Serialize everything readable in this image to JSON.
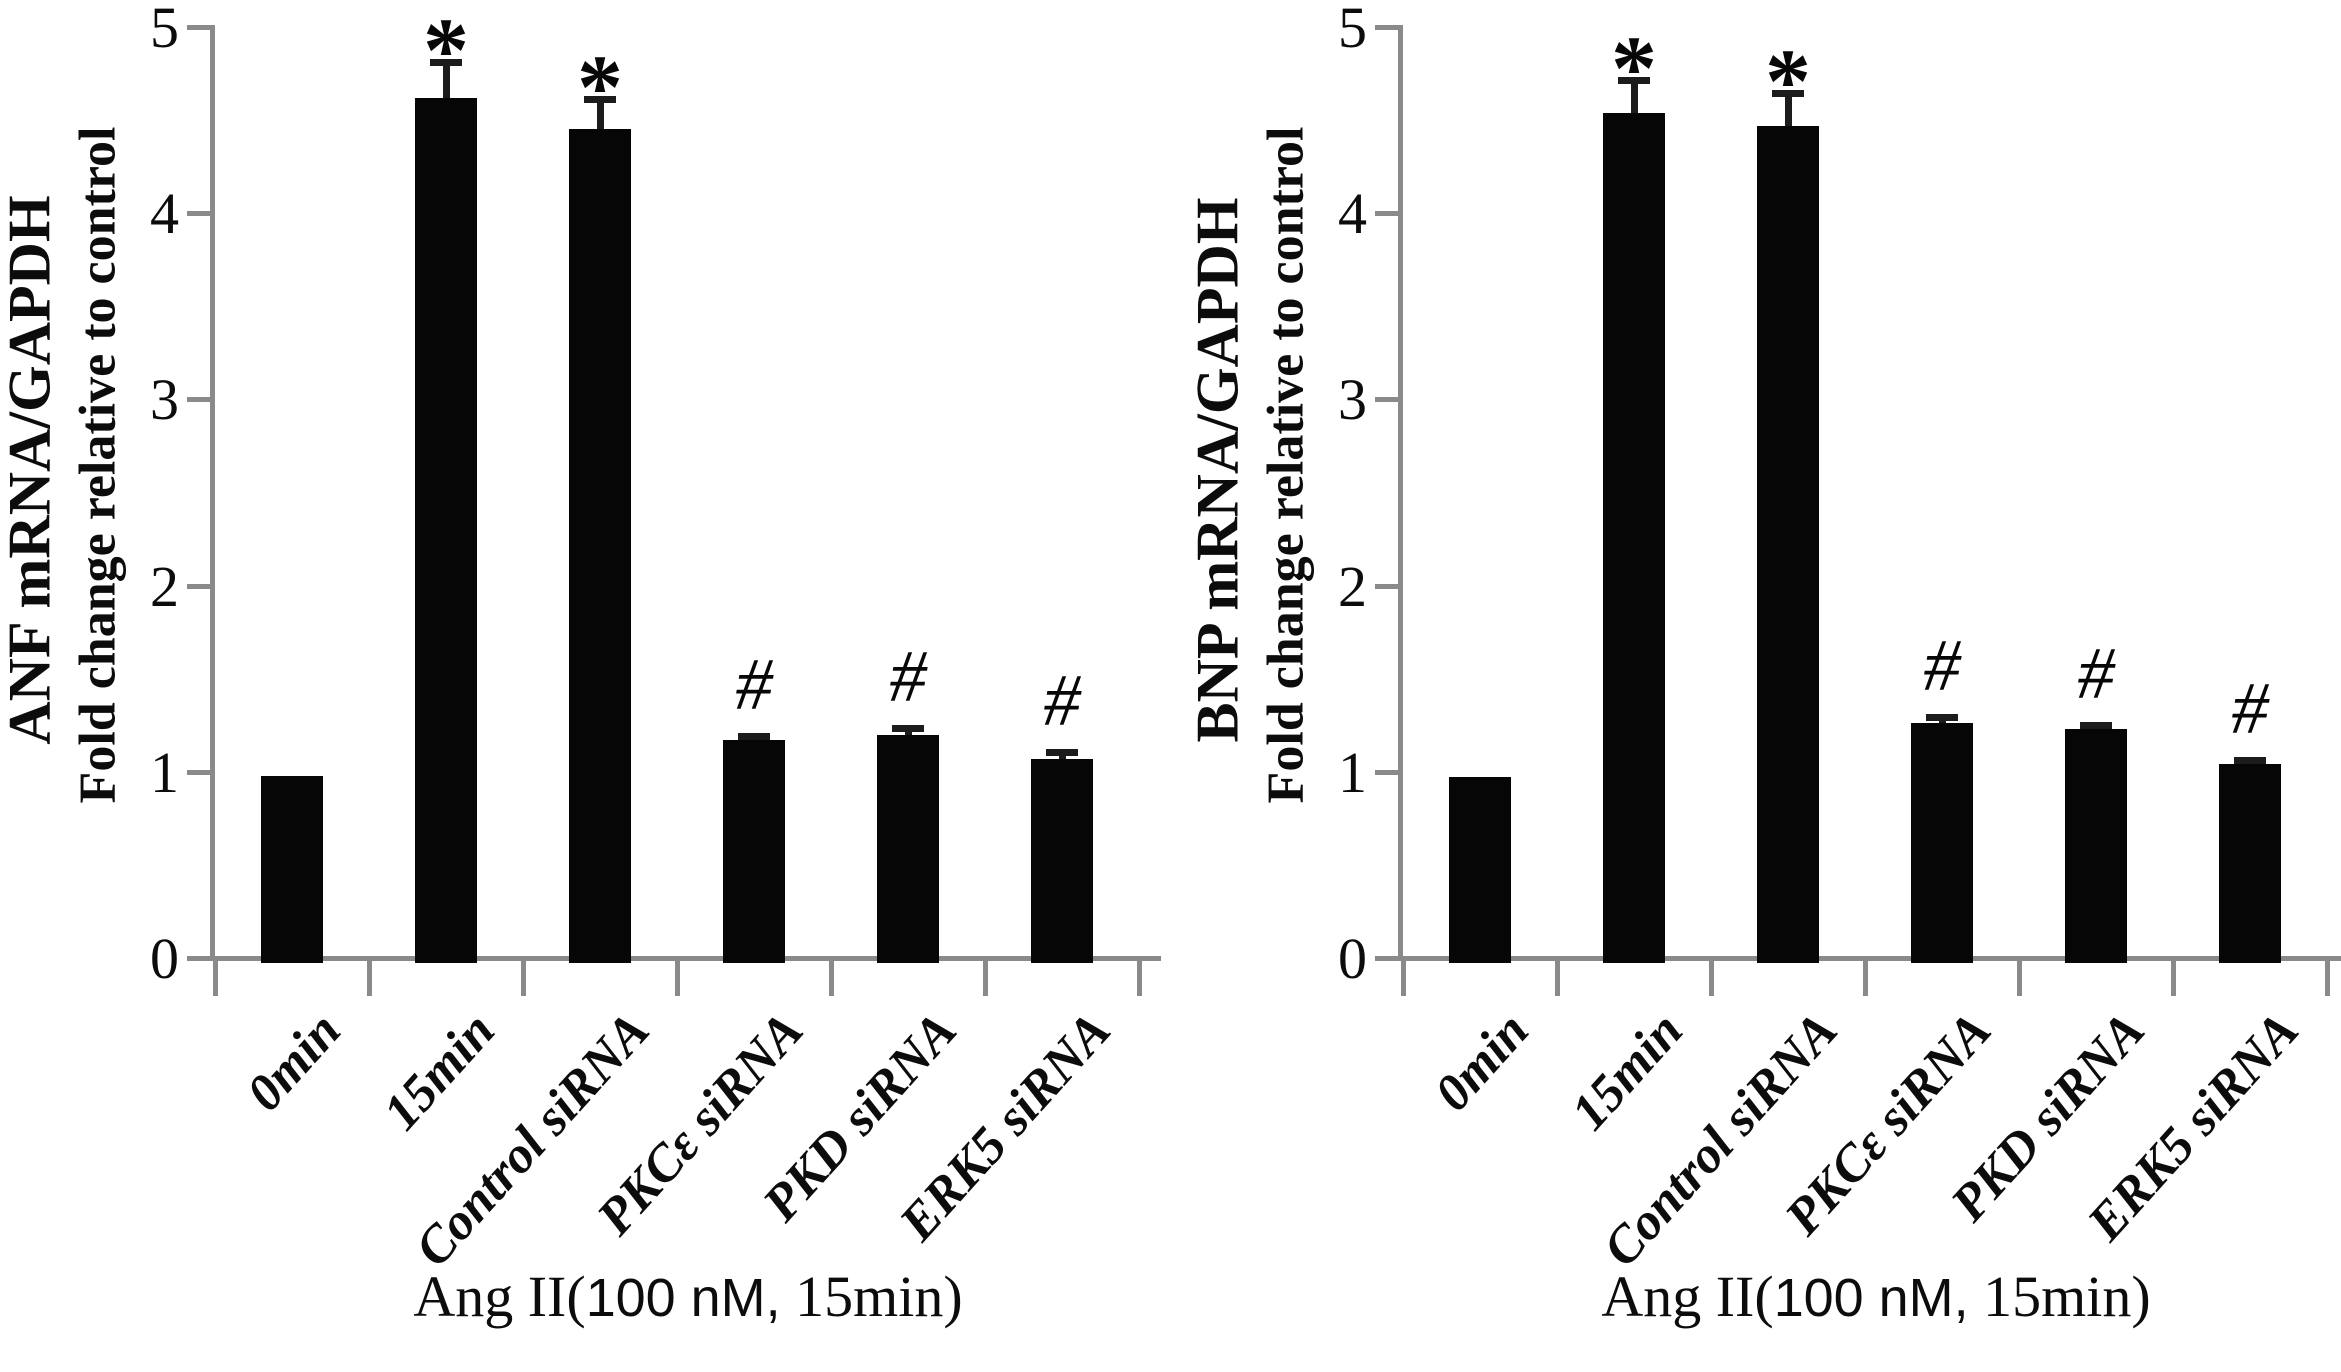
{
  "chart_data": [
    {
      "type": "bar",
      "panel": "left",
      "ylabel_line1": "ANF mRNA/GAPDH",
      "ylabel_line2": "Fold change relative to control",
      "xlabel": "Ang II(100 nM, 15min)",
      "xlabel_parts": {
        "prefix": "Ang II(",
        "mid": "100 nM,",
        "suffix": " 15min)"
      },
      "categories": [
        "0min",
        "15min",
        "Control siRNA",
        "PKCε siRNA",
        "PKD siRNA",
        "ERK5 siRNA"
      ],
      "values": [
        0.98,
        4.62,
        4.45,
        1.17,
        1.2,
        1.07
      ],
      "errors": [
        0,
        0.21,
        0.18,
        0.04,
        0.05,
        0.05
      ],
      "significance": [
        "",
        "*",
        "*",
        "#",
        "#",
        "#"
      ],
      "yticks": [
        0,
        1,
        2,
        3,
        4,
        5
      ],
      "ylim": [
        0,
        5
      ],
      "grid": false,
      "legend": null,
      "bar_color": "#060606",
      "axis_color": "#8a8a8a"
    },
    {
      "type": "bar",
      "panel": "right",
      "ylabel_line1": "BNP mRNA/GAPDH",
      "ylabel_line2": "Fold change relative to control",
      "xlabel": "Ang II(100 nM, 15min)",
      "xlabel_parts": {
        "prefix": "Ang II(",
        "mid": "100 nM,",
        "suffix": " 15min)"
      },
      "categories": [
        "0min",
        "15min",
        "Control siRNA",
        "PKCε siRNA",
        "PKD siRNA",
        "ERK5 siRNA"
      ],
      "values": [
        0.97,
        4.54,
        4.47,
        1.26,
        1.23,
        1.04
      ],
      "errors": [
        0,
        0.19,
        0.19,
        0.05,
        0.04,
        0.04
      ],
      "significance": [
        "",
        "*",
        "*",
        "#",
        "#",
        "#"
      ],
      "yticks": [
        0,
        1,
        2,
        3,
        4,
        5
      ],
      "ylim": [
        0,
        5
      ],
      "grid": false,
      "legend": null,
      "bar_color": "#060606",
      "axis_color": "#8a8a8a"
    }
  ]
}
